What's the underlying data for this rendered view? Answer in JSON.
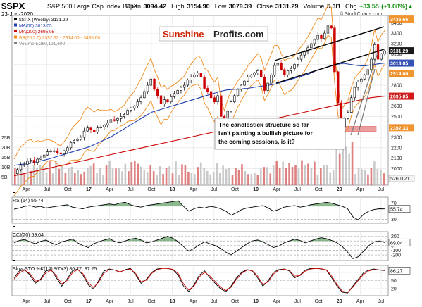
{
  "header": {
    "ticker": "$SPX",
    "name": "S&P 500 Large Cap Index",
    "exchange": "INDX",
    "date": "23-Jun-2020",
    "open_label": "Open",
    "open": "3094.42",
    "high_label": "High",
    "high": "3154.90",
    "low_label": "Low",
    "low": "3079.39",
    "close_label": "Close",
    "close": "3131.29",
    "volume_label": "Volume",
    "volume": "5.3B",
    "chg_label": "Chg",
    "chg": "+33.55 (+1.08%)",
    "chg_arrow": "▲",
    "copyright": "© StockCharts.com"
  },
  "logo": {
    "part1": "Sunshine",
    "part2": "Profits.com"
  },
  "colors": {
    "up": "#0a8a0a",
    "down": "#cc0000",
    "ma50": "#1f3fae",
    "ma200": "#cc0000",
    "bb": "#f08a1a",
    "volume": "#c0c0c0",
    "volume_down": "#d86a6a",
    "indicator_fill": "#2e7d32",
    "stoch_d": "#cc0000",
    "support_zone": "#e88080"
  },
  "annotation": "The candlestick structure so far isn't painting a bullish picture for the coming sessions, is it?",
  "chart_data": [
    {
      "type": "candlestick",
      "title": "$SPX (Weekly) 3131.29",
      "x_tick_labels": [
        "Apr",
        "Jul",
        "Oct",
        "17",
        "Apr",
        "Jul",
        "Oct",
        "18",
        "Apr",
        "Jul",
        "Oct",
        "19",
        "Apr",
        "Jul",
        "Oct",
        "20",
        "Apr",
        "Jul"
      ],
      "y_tick_labels": [
        "1900",
        "2000",
        "2100",
        "2200",
        "2300",
        "2400",
        "2500",
        "2600",
        "2700",
        "2800",
        "2900",
        "3000",
        "3100",
        "3200",
        "3300",
        "3400"
      ],
      "ylim": [
        1840,
        3470
      ],
      "legend": [
        {
          "label": "$SPX (Weekly) 3131.29",
          "color": "#000000"
        },
        {
          "label": "MA(50) 3013.05",
          "color": "#1f3fae"
        },
        {
          "label": "MA(200) 2695.05",
          "color": "#cc0000"
        },
        {
          "label": "BB(20,2.0) 2392.33 - 2914.00 - 3435.66",
          "color": "#f08a1a"
        },
        {
          "label": "Volume 5,260,121,600",
          "color": "#808080"
        }
      ],
      "right_axis_value_tags": [
        {
          "value": "3435.66",
          "color": "#f08a1a"
        },
        {
          "value": "3131.29",
          "color": "#000000"
        },
        {
          "value": "3013.05",
          "color": "#1f3fae"
        },
        {
          "value": "2914.00",
          "color": "#f08a1a"
        },
        {
          "value": "2695.05",
          "color": "#cc0000"
        },
        {
          "value": "2392.33",
          "color": "#f08a1a"
        }
      ],
      "volume_axis_labels": [
        "25B",
        "20B",
        "15B",
        "10B",
        "5B"
      ],
      "volume_last": "5260121",
      "support_zone": [
        2355,
        2405
      ],
      "series": [
        {
          "name": "$SPX",
          "values": [
            1950,
            1990,
            2030,
            2040,
            2070,
            2080,
            2060,
            2090,
            2100,
            2130,
            2160,
            2170,
            2170,
            2150,
            2140,
            2170,
            2200,
            2250,
            2270,
            2280,
            2300,
            2360,
            2390,
            2370,
            2350,
            2390,
            2400,
            2420,
            2440,
            2470,
            2460,
            2480,
            2500,
            2520,
            2560,
            2580,
            2600,
            2640,
            2680,
            2740,
            2800,
            2860,
            2760,
            2700,
            2620,
            2660,
            2640,
            2690,
            2720,
            2750,
            2780,
            2800,
            2850,
            2880,
            2900,
            2920,
            2880,
            2770,
            2740,
            2680,
            2640,
            2700,
            2500,
            2420,
            2550,
            2640,
            2700,
            2760,
            2800,
            2840,
            2880,
            2900,
            2920,
            2940,
            2880,
            2750,
            2820,
            2900,
            2990,
            3010,
            2950,
            2900,
            2940,
            2960,
            3000,
            3050,
            3090,
            3120,
            3160,
            3200,
            3240,
            3280,
            3250,
            3300,
            3370,
            3350,
            2930,
            2630,
            2400,
            2480,
            2540,
            2680,
            2780,
            2830,
            2860,
            2900,
            2950,
            3050,
            3190,
            3050,
            3100,
            3131
          ]
        },
        {
          "name": "MA(50)",
          "values": [
            2030,
            2040,
            2045,
            2060,
            2075,
            2090,
            2110,
            2130,
            2150,
            2170,
            2190,
            2210,
            2240,
            2270,
            2300,
            2340,
            2380,
            2420,
            2460,
            2500,
            2540,
            2560,
            2580,
            2600,
            2620,
            2640,
            2660,
            2680,
            2700,
            2720,
            2740,
            2755,
            2760,
            2765,
            2770,
            2780,
            2790,
            2800,
            2810,
            2830,
            2850,
            2870,
            2890,
            2910,
            2940,
            2960,
            2980,
            3000,
            3010,
            3000,
            2990,
            2985,
            2995,
            3005,
            3013
          ]
        },
        {
          "name": "MA(200)",
          "values": [
            1930,
            1960,
            1990,
            2020,
            2050,
            2080,
            2110,
            2140,
            2170,
            2200,
            2230,
            2260,
            2290,
            2320,
            2350,
            2380,
            2410,
            2440,
            2470,
            2500,
            2530,
            2560,
            2590,
            2620,
            2650,
            2680,
            2695
          ]
        }
      ]
    },
    {
      "type": "line",
      "title": "RSI(14) 55.74",
      "y_tick_labels": [
        "70",
        "30"
      ],
      "value_tag": "55.74",
      "ylim": [
        20,
        85
      ],
      "series": [
        {
          "name": "RSI(14)",
          "values": [
            55,
            58,
            62,
            64,
            60,
            62,
            58,
            60,
            62,
            64,
            66,
            60,
            58,
            56,
            60,
            62,
            64,
            66,
            68,
            66,
            70,
            72,
            66,
            62,
            60,
            64,
            66,
            68,
            70,
            72,
            74,
            76,
            62,
            50,
            56,
            60,
            58,
            62,
            60,
            56,
            50,
            40,
            46,
            54,
            58,
            60,
            62,
            64,
            58,
            50,
            54,
            60,
            62,
            64,
            60,
            62,
            66,
            68,
            70,
            72,
            70,
            66,
            62,
            56,
            36,
            28,
            42,
            50,
            54,
            56,
            55.74
          ]
        }
      ]
    },
    {
      "type": "line",
      "title": "CCI(20) 69.04",
      "y_tick_labels": [
        "200",
        "100",
        "0",
        "-100",
        "-200"
      ],
      "value_tag": "69.04",
      "ylim": [
        -320,
        300
      ],
      "series": [
        {
          "name": "CCI(20)",
          "values": [
            60,
            110,
            130,
            80,
            40,
            90,
            120,
            60,
            20,
            80,
            110,
            140,
            60,
            0,
            -40,
            40,
            80,
            120,
            150,
            90,
            60,
            100,
            140,
            160,
            120,
            60,
            80,
            120,
            160,
            200,
            160,
            80,
            -20,
            -120,
            -60,
            20,
            80,
            40,
            0,
            -60,
            -140,
            -200,
            -120,
            -40,
            40,
            100,
            120,
            80,
            20,
            -40,
            -10,
            60,
            100,
            140,
            110,
            60,
            100,
            140,
            170,
            150,
            110,
            60,
            -20,
            -140,
            -280,
            -240,
            -120,
            0,
            80,
            100,
            69
          ]
        }
      ]
    },
    {
      "type": "line",
      "title": "Slow STO %K(14) %D(3) 86.27, 87.25",
      "y_tick_labels": [
        "80",
        "50",
        "20"
      ],
      "value_tag": "86.27",
      "ylim": [
        -5,
        105
      ],
      "series": [
        {
          "name": "%K(14)",
          "values": [
            60,
            85,
            90,
            70,
            40,
            55,
            85,
            90,
            60,
            30,
            55,
            85,
            92,
            70,
            35,
            20,
            50,
            85,
            92,
            88,
            80,
            90,
            94,
            70,
            40,
            55,
            80,
            92,
            95,
            94,
            90,
            70,
            30,
            10,
            35,
            70,
            85,
            60,
            40,
            20,
            10,
            30,
            60,
            80,
            90,
            85,
            60,
            30,
            50,
            80,
            90,
            92,
            85,
            60,
            70,
            88,
            94,
            95,
            92,
            88,
            60,
            30,
            8,
            5,
            30,
            55,
            78,
            88,
            92,
            88,
            86.27
          ]
        },
        {
          "name": "%D(3)",
          "values": [
            55,
            78,
            88,
            75,
            48,
            52,
            78,
            88,
            68,
            38,
            50,
            78,
            90,
            75,
            42,
            25,
            45,
            78,
            90,
            88,
            82,
            88,
            92,
            75,
            45,
            52,
            76,
            90,
            94,
            94,
            91,
            76,
            38,
            16,
            30,
            64,
            80,
            66,
            46,
            26,
            14,
            26,
            54,
            76,
            88,
            86,
            66,
            36,
            46,
            74,
            88,
            91,
            87,
            66,
            68,
            84,
            92,
            94,
            93,
            89,
            66,
            36,
            12,
            7,
            26,
            50,
            72,
            85,
            90,
            89,
            87.25
          ]
        }
      ]
    }
  ]
}
